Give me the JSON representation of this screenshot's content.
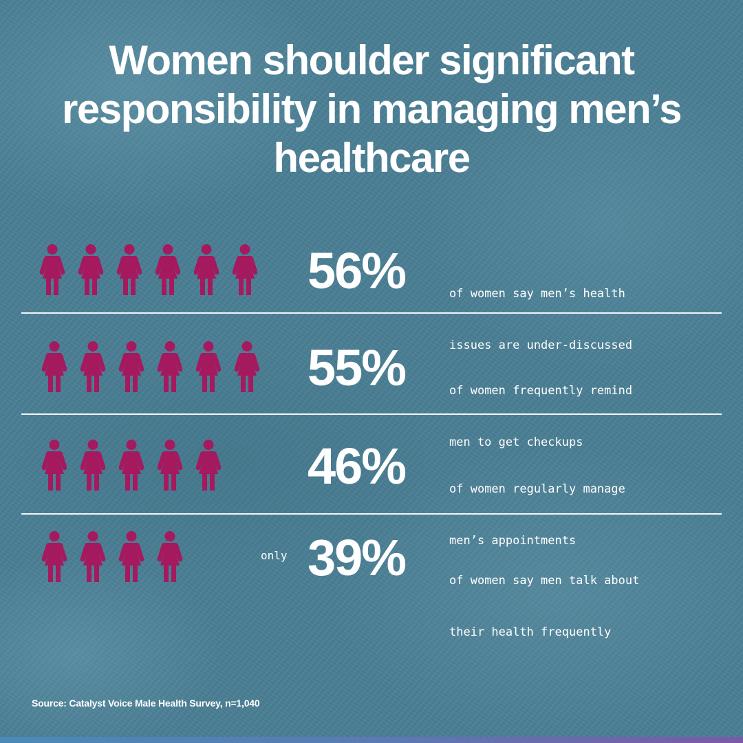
{
  "title": {
    "lines": [
      "Women shoulder significant",
      "responsibility in managing men’s",
      "healthcare"
    ]
  },
  "colors": {
    "background": "#4b7f95",
    "icon": "#a5195f",
    "text": "#ffffff",
    "divider": "#f2f6f8",
    "bar_start": "#4a8ab8",
    "bar_end": "#7a5aa8"
  },
  "rows": [
    {
      "icon_count": 6,
      "icon": "woman-icon",
      "qualifier": "",
      "percent": "56%",
      "desc_lines": [
        "of women say men’s health",
        "issues are under-discussed"
      ]
    },
    {
      "icon_count": 6,
      "icon": "woman-icon",
      "qualifier": "",
      "percent": "55%",
      "desc_lines": [
        "of women frequently remind",
        "men to get checkups"
      ]
    },
    {
      "icon_count": 5,
      "icon": "woman-icon",
      "qualifier": "",
      "percent": "46%",
      "desc_lines": [
        "of women regularly manage",
        "men’s appointments"
      ]
    },
    {
      "icon_count": 4,
      "icon": "woman-icon",
      "qualifier": "only",
      "percent": "39%",
      "desc_lines": [
        "of women say men talk about",
        "their health frequently"
      ]
    }
  ],
  "source": "Source: Catalyst Voice Male Health Survey, n=1,040",
  "chart_data": {
    "type": "pictograph",
    "title": "Women shoulder significant responsibility in managing men’s healthcare",
    "categories": [
      "of women say men’s health issues are under-discussed",
      "of women frequently remind men to get checkups",
      "of women regularly manage men’s appointments",
      "of women say men talk about their health frequently"
    ],
    "values": [
      56,
      55,
      46,
      39
    ],
    "unit": "%",
    "icon_counts": [
      6,
      6,
      5,
      4
    ],
    "annotations": [
      "",
      "",
      "",
      "only"
    ],
    "source": "Source: Catalyst Voice Male Health Survey, n=1,040",
    "grid": false,
    "legend": "none"
  }
}
